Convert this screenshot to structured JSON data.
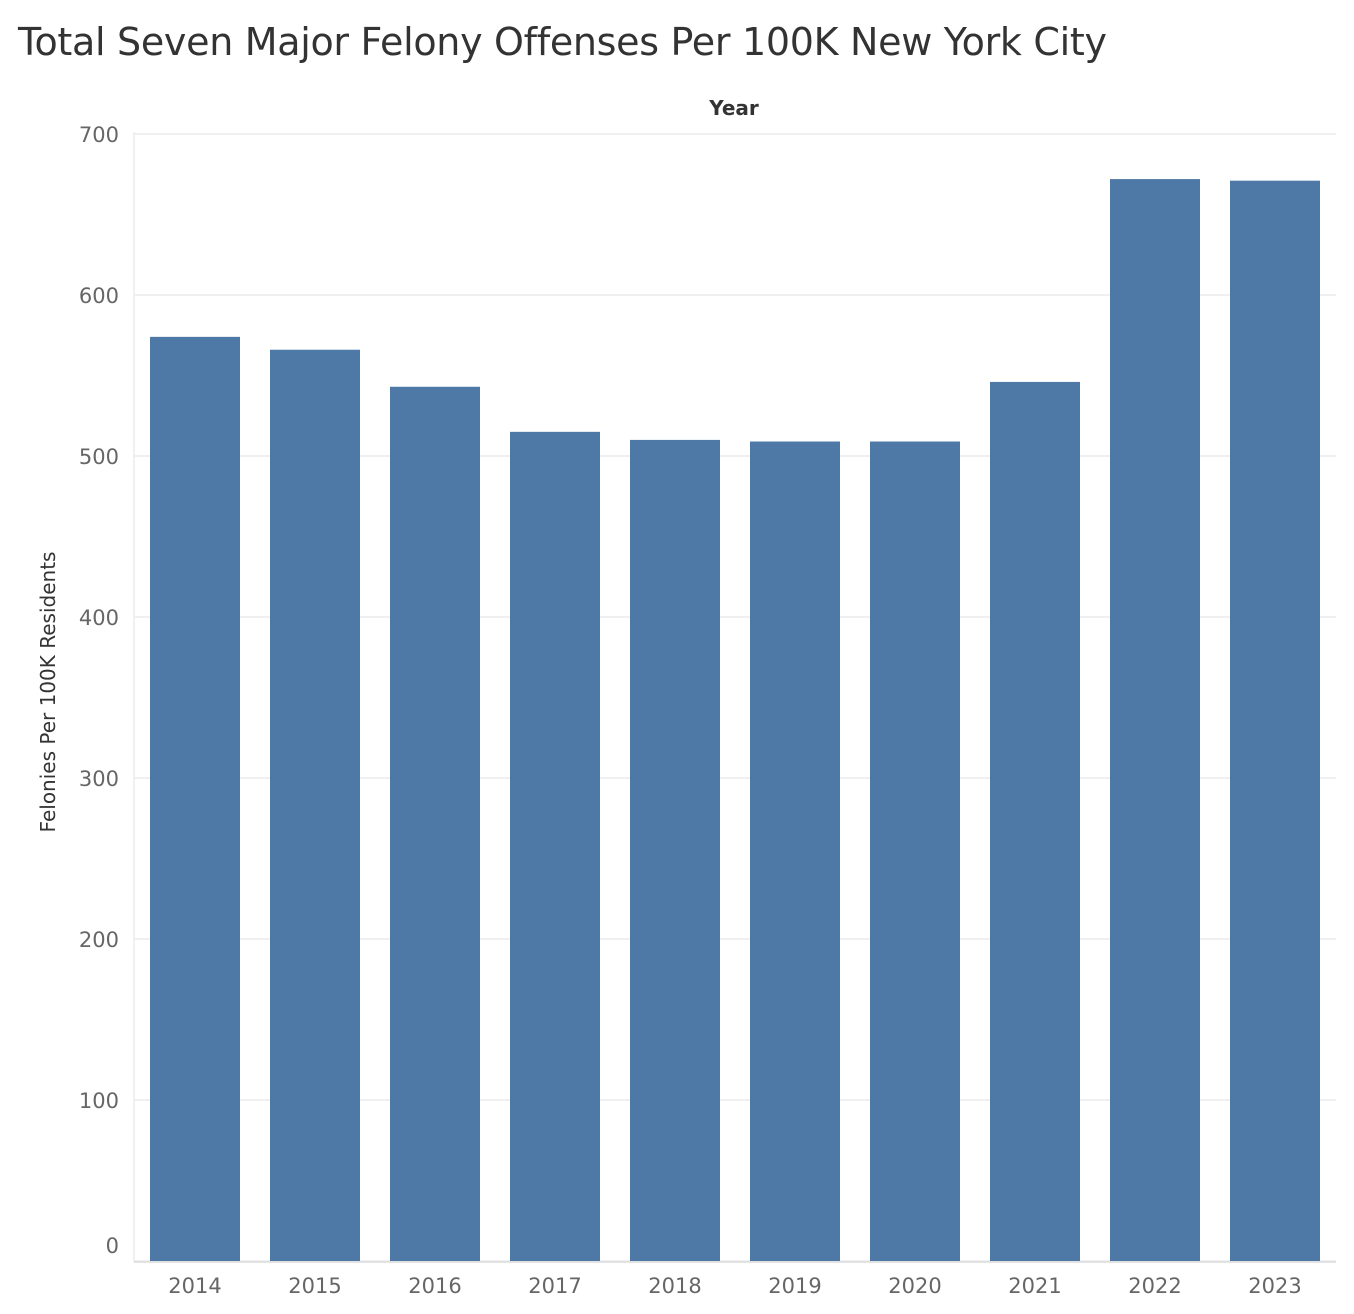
{
  "title": "Total Seven Major Felony Offenses Per 100K New York City",
  "colors": {
    "bar": "#4e79a7",
    "grid": "#ececec",
    "axis_text": "#666666",
    "header_text": "#333333"
  },
  "chart_data": {
    "type": "bar",
    "xlabel": "Year",
    "ylabel": "Felonies Per 100K Residents",
    "categories": [
      "2014",
      "2015",
      "2016",
      "2017",
      "2018",
      "2019",
      "2020",
      "2021",
      "2022",
      "2023"
    ],
    "values": [
      574,
      566,
      543,
      515,
      510,
      509,
      509,
      546,
      672,
      671
    ],
    "ylim": [
      0,
      700
    ],
    "yticks": [
      0,
      100,
      200,
      300,
      400,
      500,
      600,
      700
    ],
    "grid": true,
    "legend": "none"
  }
}
